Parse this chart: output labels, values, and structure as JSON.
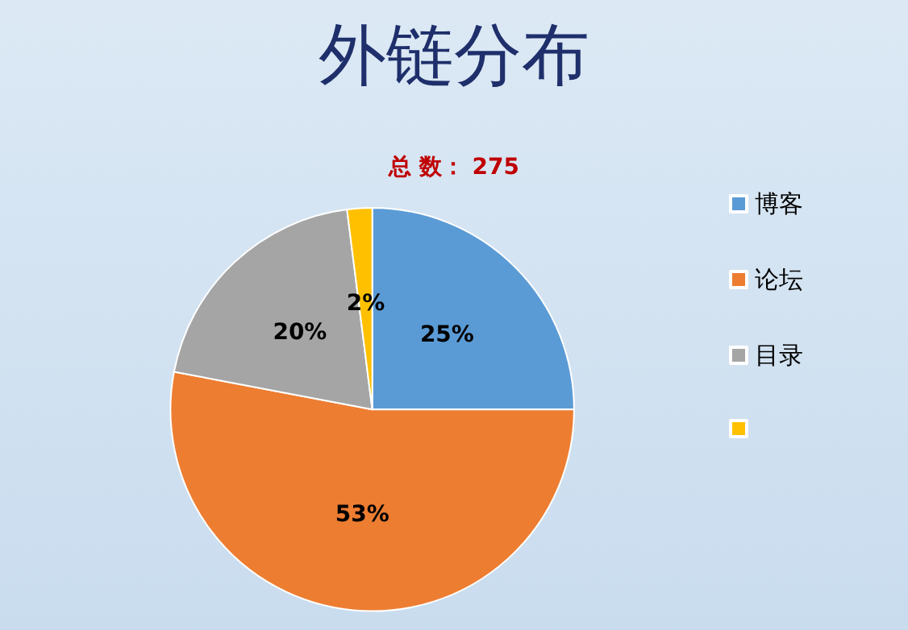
{
  "chart_data": {
    "type": "pie",
    "title": "外链分布",
    "subtitle": "总 数： 275",
    "categories": [
      "博客",
      "论坛",
      "目录",
      null
    ],
    "values": [
      25,
      53,
      20,
      2
    ],
    "colors": [
      "#5b9bd5",
      "#ed7d31",
      "#a5a5a5",
      "#ffc000"
    ],
    "value_labels": [
      "25%",
      "53%",
      "20%",
      "2%"
    ],
    "legend": "right"
  }
}
